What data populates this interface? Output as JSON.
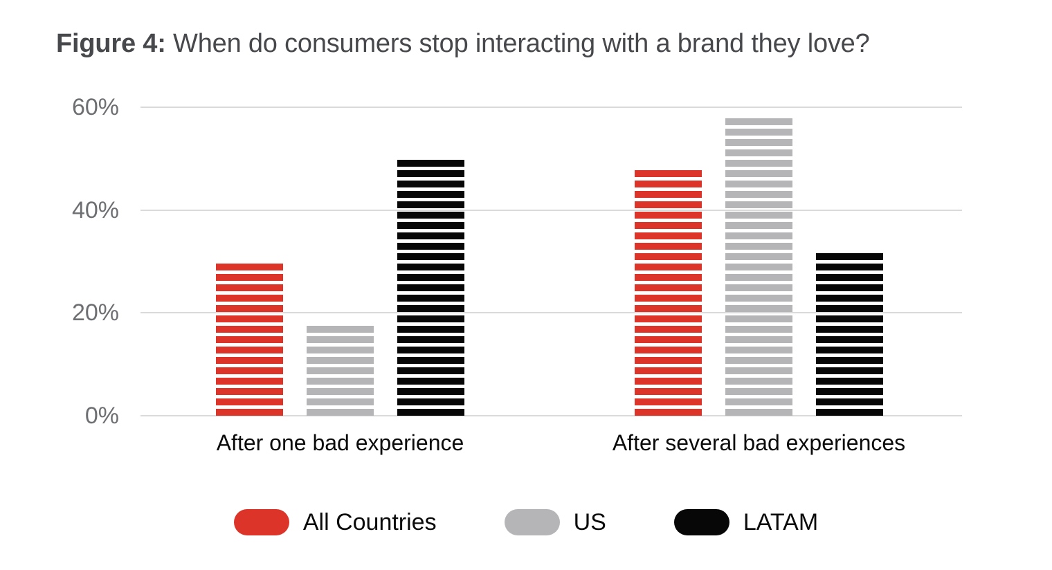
{
  "figure": {
    "title_prefix": "Figure 4:",
    "title_rest": " When do consumers stop interacting with a brand they love?"
  },
  "chart_data": {
    "type": "bar",
    "title": "Figure 4: When do consumers stop interacting with a brand they love?",
    "categories": [
      "After one bad experience",
      "After several bad experiences"
    ],
    "series": [
      {
        "name": "All Countries",
        "color": "#DC3428",
        "values": [
          30,
          48
        ]
      },
      {
        "name": "US",
        "color": "#B5B5B8",
        "values": [
          18,
          58
        ]
      },
      {
        "name": "LATAM",
        "color": "#070707",
        "values": [
          50,
          32
        ]
      }
    ],
    "value_unit": "%",
    "ylim": [
      0,
      60
    ],
    "yticks": [
      0,
      20,
      40,
      60
    ],
    "ytick_suffix": "%",
    "grid": true,
    "gridline_color": "#DADADA",
    "tick_label_color": "#6E6F73",
    "bar_style": "horizontal-stripes",
    "legend_position": "bottom"
  }
}
